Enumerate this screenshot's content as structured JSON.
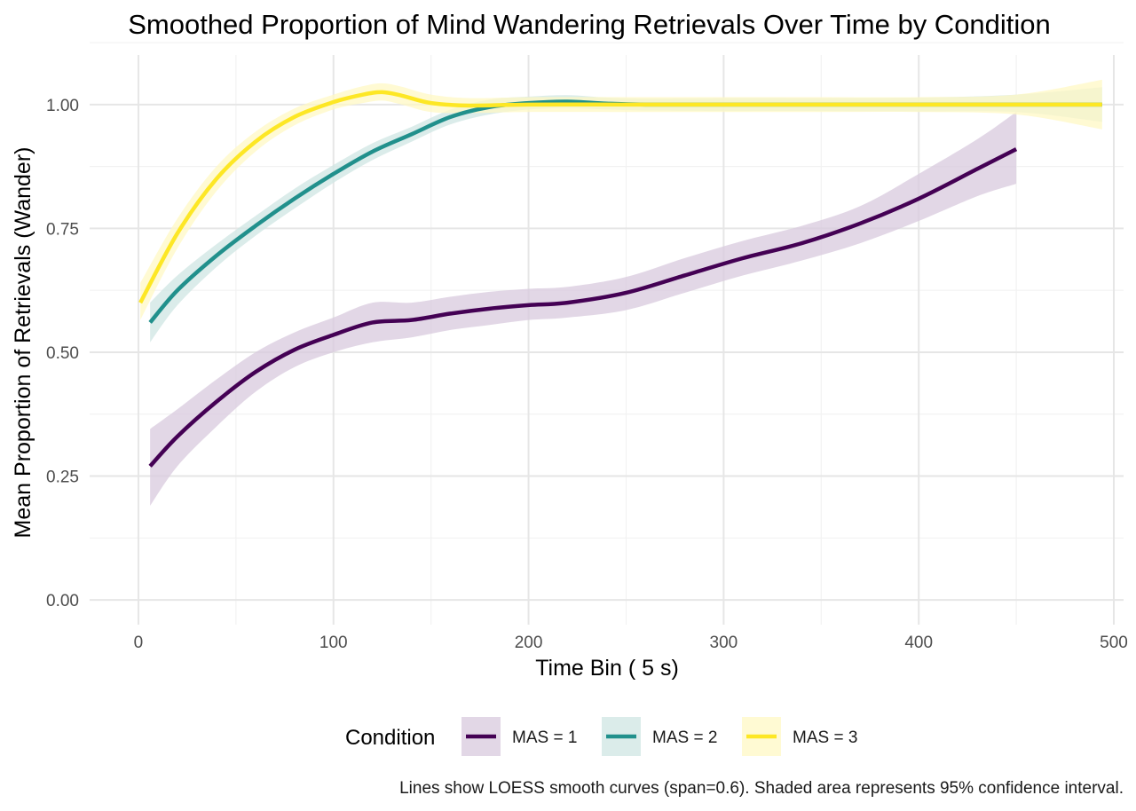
{
  "chart_data": {
    "type": "line",
    "title": "Smoothed Proportion of Mind Wandering Retrievals Over Time by Condition",
    "xlabel": "Time Bin ( 5 s)",
    "ylabel": "Mean Proportion of Retrievals (Wander)",
    "xlim": [
      -25,
      505
    ],
    "ylim": [
      -0.05,
      1.1
    ],
    "x_ticks": [
      0,
      100,
      200,
      300,
      400,
      500
    ],
    "x_tick_labels": [
      "0",
      "100",
      "200",
      "300",
      "400",
      "500"
    ],
    "y_ticks": [
      0,
      0.25,
      0.5,
      0.75,
      1.0
    ],
    "y_tick_labels": [
      "0.00",
      "0.25",
      "0.50",
      "0.75",
      "1.00"
    ],
    "grid": true,
    "legend": {
      "title": "Condition",
      "position": "bottom"
    },
    "caption": "Lines show LOESS smooth curves (span=0.6). Shaded area represents 95% confidence interval.",
    "series": [
      {
        "name": "MAS = 1",
        "color": "#440154",
        "fill": "#d8c9de",
        "x": [
          6,
          20,
          40,
          60,
          80,
          100,
          120,
          140,
          160,
          180,
          200,
          220,
          250,
          280,
          310,
          340,
          370,
          400,
          430,
          450
        ],
        "y": [
          0.27,
          0.33,
          0.4,
          0.46,
          0.505,
          0.535,
          0.56,
          0.565,
          0.578,
          0.588,
          0.595,
          0.6,
          0.62,
          0.655,
          0.69,
          0.72,
          0.76,
          0.81,
          0.87,
          0.91
        ],
        "lower": [
          0.19,
          0.27,
          0.35,
          0.42,
          0.47,
          0.5,
          0.52,
          0.53,
          0.545,
          0.555,
          0.565,
          0.57,
          0.585,
          0.62,
          0.655,
          0.685,
          0.72,
          0.765,
          0.815,
          0.84
        ],
        "upper": [
          0.345,
          0.385,
          0.445,
          0.5,
          0.54,
          0.57,
          0.6,
          0.6,
          0.612,
          0.622,
          0.628,
          0.632,
          0.652,
          0.69,
          0.725,
          0.755,
          0.795,
          0.86,
          0.93,
          0.985
        ]
      },
      {
        "name": "MAS = 2",
        "color": "#21908c",
        "fill": "#cfe5e3",
        "x": [
          6,
          20,
          40,
          60,
          80,
          100,
          120,
          140,
          160,
          180,
          200,
          220,
          240,
          260,
          300,
          350,
          400,
          450,
          494
        ],
        "y": [
          0.56,
          0.625,
          0.695,
          0.755,
          0.81,
          0.86,
          0.905,
          0.94,
          0.975,
          0.995,
          1.003,
          1.006,
          1.002,
          1.0,
          1.0,
          1.0,
          1.0,
          1.0,
          1.0
        ],
        "lower": [
          0.52,
          0.595,
          0.672,
          0.735,
          0.79,
          0.842,
          0.888,
          0.925,
          0.96,
          0.98,
          0.99,
          0.993,
          0.99,
          0.988,
          0.987,
          0.987,
          0.986,
          0.985,
          0.965
        ],
        "upper": [
          0.6,
          0.655,
          0.718,
          0.775,
          0.83,
          0.878,
          0.922,
          0.955,
          0.99,
          1.01,
          1.016,
          1.019,
          1.014,
          1.012,
          1.013,
          1.013,
          1.014,
          1.02,
          1.035
        ]
      },
      {
        "name": "MAS = 3",
        "color": "#fde725",
        "fill": "#fff8c4",
        "x": [
          1,
          20,
          40,
          60,
          80,
          100,
          115,
          125,
          135,
          150,
          170,
          200,
          250,
          300,
          350,
          400,
          450,
          494
        ],
        "y": [
          0.6,
          0.74,
          0.85,
          0.925,
          0.975,
          1.005,
          1.02,
          1.025,
          1.018,
          1.003,
          0.998,
          1.0,
          1.0,
          1.0,
          1.0,
          1.0,
          1.0,
          1.0
        ],
        "lower": [
          0.565,
          0.71,
          0.825,
          0.905,
          0.958,
          0.99,
          1.003,
          1.008,
          1.0,
          0.985,
          0.983,
          0.985,
          0.985,
          0.985,
          0.985,
          0.985,
          0.98,
          0.95
        ],
        "upper": [
          0.64,
          0.77,
          0.875,
          0.945,
          0.992,
          1.02,
          1.037,
          1.043,
          1.036,
          1.02,
          1.013,
          1.015,
          1.015,
          1.015,
          1.015,
          1.015,
          1.02,
          1.05
        ]
      }
    ]
  }
}
